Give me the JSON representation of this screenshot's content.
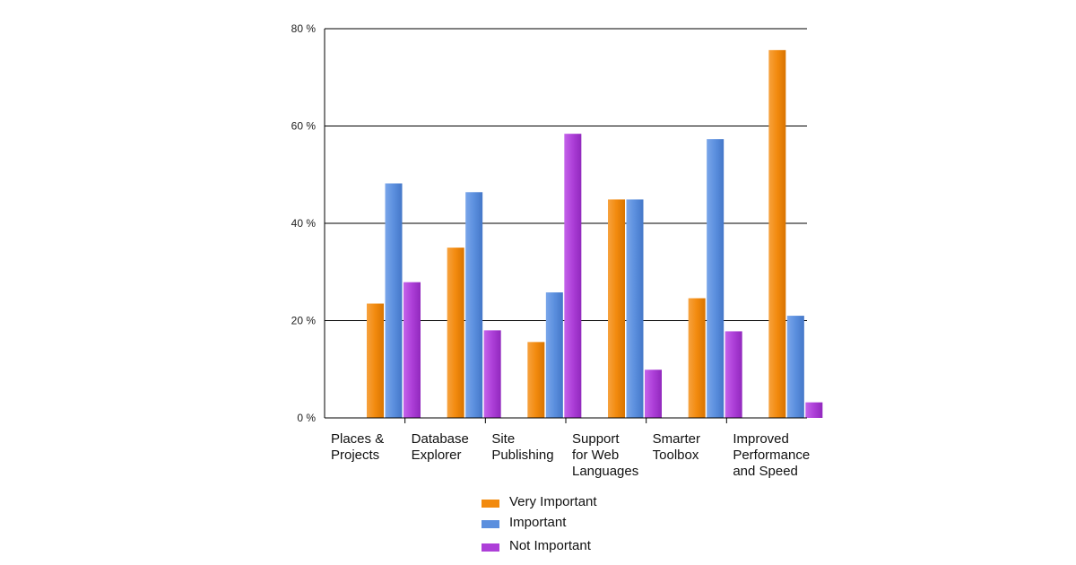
{
  "chart_data": {
    "type": "bar",
    "categories": [
      [
        "Places &",
        "Projects"
      ],
      [
        "Database",
        "Explorer"
      ],
      [
        "Site",
        "Publishing"
      ],
      [
        "Support",
        "for Web",
        "Languages"
      ],
      [
        "Smarter",
        "Toolbox"
      ],
      [
        "Improved",
        "Performance",
        "and Speed"
      ]
    ],
    "series": [
      {
        "name": "Very Important",
        "color": "#f28a0e",
        "values": [
          23.5,
          35,
          15.6,
          44.9,
          24.6,
          75.6
        ]
      },
      {
        "name": "Important",
        "color": "#5b8fde",
        "values": [
          48.2,
          46.4,
          25.8,
          44.9,
          57.3,
          21.0
        ]
      },
      {
        "name": "Not Important",
        "color": "#ad3fd8",
        "values": [
          27.9,
          18.0,
          58.4,
          9.9,
          17.8,
          3.2
        ]
      }
    ],
    "ylim": [
      0,
      80
    ],
    "yticks": [
      0,
      20,
      40,
      60,
      80
    ],
    "ytick_suffix": " %",
    "grid": true,
    "legend_position": "bottom"
  }
}
